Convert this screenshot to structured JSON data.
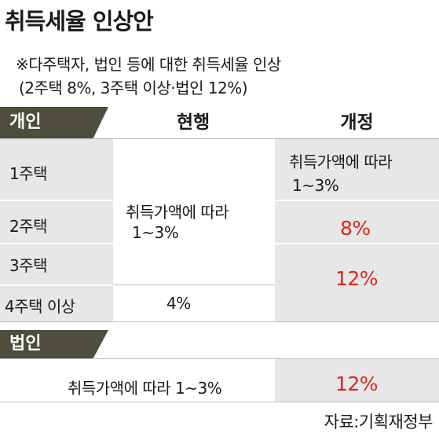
{
  "title": "취득세율 인상안",
  "note": {
    "line1": "※다주택자, 법인 등에 대한 취득세율 인상",
    "line2": "(2주택 8%, 3주택 이상·법인 12%)"
  },
  "table": {
    "section_individual": "개인",
    "col_current": "현행",
    "col_revised": "개정",
    "rows": [
      "1주택",
      "2주택",
      "3주택",
      "4주택 이상"
    ],
    "current_main": "취득가액에 따라 1~3%",
    "current_4plus": "4%",
    "revised_1": "취득가액에 따라 1~3%",
    "revised_2": "8%",
    "revised_3plus": "12%",
    "section_corporate": "법인",
    "corporate_current": "취득가액에 따라 1~3%",
    "corporate_revised": "12%"
  },
  "source": "자료:기획재정부",
  "colors": {
    "tag": "#4e4d3e",
    "highlight": "#d7261e",
    "shade": "#e7e7e7"
  }
}
